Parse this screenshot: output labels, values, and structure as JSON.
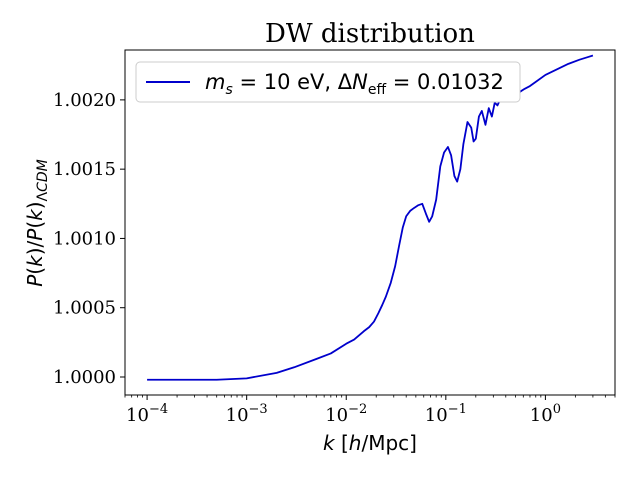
{
  "chart_data": {
    "type": "line",
    "title": "DW distribution",
    "xlabel": "k [h/Mpc]",
    "ylabel": "P(k)/P(k)ΛCDM",
    "x_scale": "log",
    "xlim": [
      6e-05,
      5.0
    ],
    "ylim": [
      0.99987,
      1.00236
    ],
    "x_ticks": [
      {
        "value": 0.0001,
        "base": "10",
        "exp": "−4"
      },
      {
        "value": 0.001,
        "base": "10",
        "exp": "−3"
      },
      {
        "value": 0.01,
        "base": "10",
        "exp": "−2"
      },
      {
        "value": 0.1,
        "base": "10",
        "exp": "−1"
      },
      {
        "value": 1,
        "base": "10",
        "exp": "0"
      }
    ],
    "y_ticks": [
      {
        "value": 1.0,
        "label": "1.0000"
      },
      {
        "value": 1.0005,
        "label": "1.0005"
      },
      {
        "value": 1.001,
        "label": "1.0010"
      },
      {
        "value": 1.0015,
        "label": "1.0015"
      },
      {
        "value": 1.002,
        "label": "1.0020"
      }
    ],
    "grid": false,
    "legend": {
      "placement": "top-left",
      "entries": [
        "m_s = 10 eV, ΔN_eff = 0.01032"
      ]
    },
    "series": [
      {
        "name": "m_s = 10 eV, ΔN_eff = 0.01032",
        "color": "#0000cc",
        "x": [
          0.0001,
          0.0002,
          0.0005,
          0.001,
          0.002,
          0.003,
          0.005,
          0.007,
          0.01,
          0.012,
          0.015,
          0.017,
          0.019,
          0.021,
          0.023,
          0.025,
          0.028,
          0.031,
          0.034,
          0.037,
          0.04,
          0.044,
          0.048,
          0.053,
          0.058,
          0.063,
          0.068,
          0.073,
          0.08,
          0.088,
          0.096,
          0.105,
          0.113,
          0.122,
          0.13,
          0.14,
          0.15,
          0.165,
          0.18,
          0.19,
          0.2,
          0.215,
          0.23,
          0.25,
          0.27,
          0.29,
          0.31,
          0.33,
          0.36,
          0.39,
          0.42,
          0.45,
          0.48,
          0.52,
          0.56,
          0.62,
          0.7,
          0.8,
          1.0,
          1.3,
          1.7,
          2.2,
          2.7,
          3.0
        ],
        "y": [
          0.99998,
          0.99998,
          0.99998,
          0.99999,
          1.00003,
          1.00007,
          1.00013,
          1.00017,
          1.00024,
          1.00027,
          1.00033,
          1.00036,
          1.0004,
          1.00046,
          1.00052,
          1.00058,
          1.00068,
          1.0008,
          1.00095,
          1.00108,
          1.00116,
          1.0012,
          1.00122,
          1.00124,
          1.00125,
          1.00118,
          1.00112,
          1.00116,
          1.00128,
          1.00152,
          1.00162,
          1.00166,
          1.0016,
          1.00145,
          1.00141,
          1.0015,
          1.00168,
          1.00184,
          1.0018,
          1.0017,
          1.00172,
          1.00188,
          1.00192,
          1.00182,
          1.00194,
          1.00188,
          1.00198,
          1.00196,
          1.00202,
          1.002,
          1.00199,
          1.00202,
          1.00204,
          1.00203,
          1.00206,
          1.00208,
          1.0021,
          1.00213,
          1.00218,
          1.00222,
          1.00226,
          1.00229,
          1.00231,
          1.00232
        ]
      }
    ]
  }
}
